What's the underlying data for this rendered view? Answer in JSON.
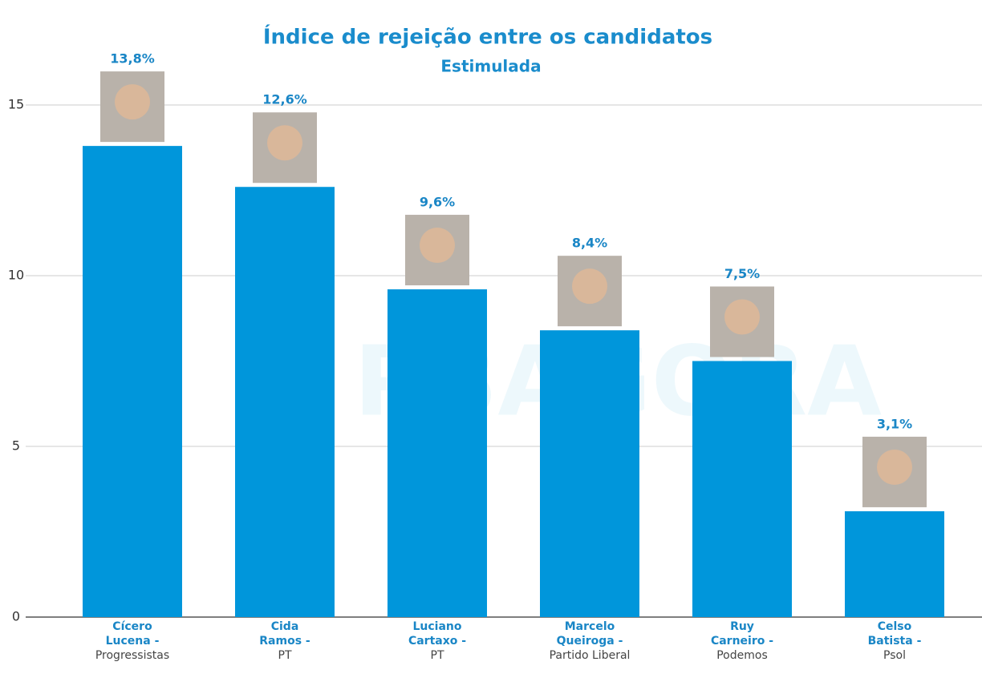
{
  "chart_data": {
    "type": "bar",
    "title": "Índice de rejeição entre os candidatos",
    "subtitle": "Estimulada",
    "watermark": "PBAGORA",
    "categories": [
      "Cícero\nLucena -",
      "Cida\nRamos -",
      "Luciano\nCartaxo -",
      "Marcelo\nQueiroga -",
      "Ruy\nCarneiro -",
      "Celso\nBatista -"
    ],
    "parties": [
      "Progressistas",
      "PT",
      "PT",
      "Partido Liberal",
      "Podemos",
      "Psol"
    ],
    "values": [
      13.8,
      12.6,
      9.6,
      8.4,
      7.5,
      3.1
    ],
    "value_labels": [
      "13,8%",
      "12,6%",
      "9,6%",
      "8,4%",
      "7,5%",
      "3,1%"
    ],
    "color": "#0096db",
    "ylim": [
      0,
      15
    ],
    "yticks": [
      0,
      5,
      10,
      15
    ],
    "grid": true
  }
}
